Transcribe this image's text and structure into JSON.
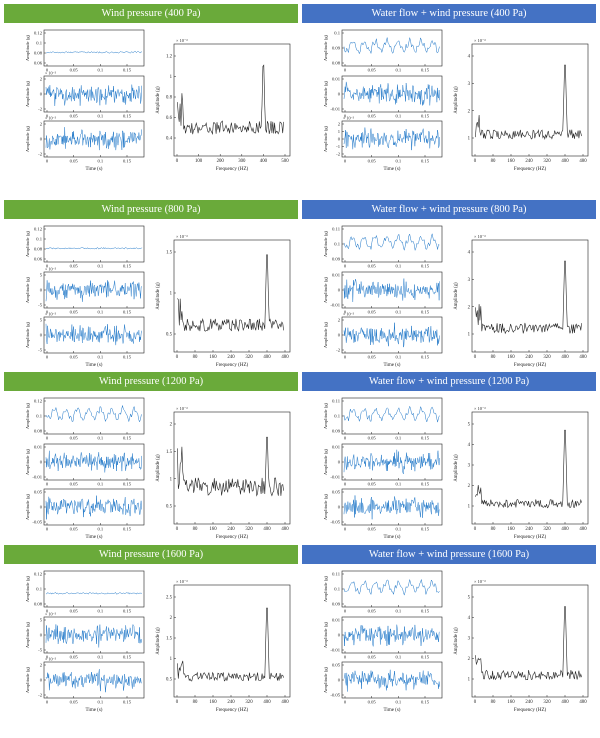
{
  "colors": {
    "green": "#6aaa3a",
    "blue": "#4472c4",
    "signal": "#1f77c8",
    "spectrum": "#222222"
  },
  "labels": {
    "amplitude": "Amplitude (g)",
    "time": "Time (s)",
    "frequency": "Frequency (HZ)"
  },
  "panels": [
    {
      "title": "Wind pressure (400 Pa)",
      "color": "green",
      "ts": [
        {
          "ticks": [
            "0.12",
            "0.1",
            "0.08",
            "0.06"
          ],
          "exp": "",
          "level": "0.08",
          "kind": "flat"
        },
        {
          "ticks": [
            "2",
            "0",
            "-2"
          ],
          "exp": "× 10⁻³",
          "kind": "dense"
        },
        {
          "ticks": [
            "2",
            "0",
            "-2"
          ],
          "exp": "× 10⁻³",
          "kind": "dense"
        }
      ],
      "timeTicks": [
        "0",
        "0.05",
        "0.1",
        "0.15"
      ],
      "spectrum": {
        "exp": "× 10⁻³",
        "yticks": [
          "1.2",
          "1",
          "0.8",
          "0.6",
          "0.4"
        ],
        "xticks": [
          "0",
          "100",
          "200",
          "300",
          "400",
          "500"
        ],
        "peak_hz": 400,
        "peak": 1.22,
        "base": 0.3
      }
    },
    {
      "title": "Water flow + wind pressure (400 Pa)",
      "color": "blue",
      "ts": [
        {
          "ticks": [
            "0.1",
            "0.09",
            "0.08"
          ],
          "exp": "",
          "kind": "wavy"
        },
        {
          "ticks": [
            "0.01",
            "0",
            "-0.01"
          ],
          "exp": "",
          "kind": "dense"
        },
        {
          "ticks": [
            "2",
            "1",
            "0",
            "-1",
            "-2"
          ],
          "exp": "× 10⁻³",
          "kind": "dense"
        }
      ],
      "timeTicks": [
        "0",
        "0.05",
        "0.1",
        "0.15"
      ],
      "spectrum": {
        "exp": "× 10⁻³",
        "yticks": [
          "4",
          "3",
          "2",
          "1"
        ],
        "xticks": [
          "0",
          "80",
          "160",
          "240",
          "320",
          "400",
          "480"
        ],
        "peak_hz": 400,
        "peak": 4.1,
        "base": 0.7
      }
    },
    {
      "title": "Wind pressure (800 Pa)",
      "color": "green",
      "ts": [
        {
          "ticks": [
            "0.12",
            "0.1",
            "0.08",
            "0.06"
          ],
          "exp": "",
          "kind": "flat"
        },
        {
          "ticks": [
            "5",
            "0",
            "-5"
          ],
          "exp": "× 10⁻³",
          "kind": "dense"
        },
        {
          "ticks": [
            "5",
            "0",
            "-5"
          ],
          "exp": "× 10⁻³",
          "kind": "dense"
        }
      ],
      "timeTicks": [
        "0",
        "0.05",
        "0.1",
        "0.15"
      ],
      "spectrum": {
        "exp": "× 10⁻³",
        "yticks": [
          "1.5",
          "1",
          "0.5"
        ],
        "xticks": [
          "0",
          "80",
          "160",
          "240",
          "320",
          "400",
          "480"
        ],
        "peak_hz": 400,
        "peak": 1.65,
        "base": 0.35
      }
    },
    {
      "title": "Water flow + wind pressure (800 Pa)",
      "color": "blue",
      "ts": [
        {
          "ticks": [
            "0.11",
            "0.1",
            "0.09"
          ],
          "exp": "",
          "kind": "wavy"
        },
        {
          "ticks": [
            "0.01",
            "0",
            "-0.01"
          ],
          "exp": "",
          "kind": "dense"
        },
        {
          "ticks": [
            "2",
            "0",
            "-2"
          ],
          "exp": "× 10⁻³",
          "kind": "dense"
        }
      ],
      "timeTicks": [
        "0",
        "0.05",
        "0.1",
        "0.15"
      ],
      "spectrum": {
        "exp": "× 10⁻³",
        "yticks": [
          "4",
          "3",
          "2",
          "1"
        ],
        "xticks": [
          "0",
          "80",
          "160",
          "240",
          "320",
          "400",
          "480"
        ],
        "peak_hz": 400,
        "peak": 4.1,
        "base": 0.8
      }
    },
    {
      "title": "Wind pressure (1200 Pa)",
      "color": "green",
      "ts": [
        {
          "ticks": [
            "0.12",
            "0.1",
            "0.08"
          ],
          "exp": "",
          "kind": "wavy"
        },
        {
          "ticks": [
            "0.01",
            "0",
            "-0.01"
          ],
          "exp": "",
          "kind": "dense"
        },
        {
          "ticks": [
            "0.05",
            "0",
            "-0.05"
          ],
          "exp": "",
          "kind": "dense"
        }
      ],
      "timeTicks": [
        "0",
        "0.05",
        "0.1",
        "0.15"
      ],
      "spectrum": {
        "exp": "× 10⁻³",
        "yticks": [
          "2",
          "1.5",
          "1",
          "0.5"
        ],
        "xticks": [
          "0",
          "80",
          "160",
          "240",
          "320",
          "400",
          "480"
        ],
        "peak_hz": 400,
        "peak": 1.95,
        "base": 0.7
      }
    },
    {
      "title": "Water flow + wind pressure (1200 Pa)",
      "color": "blue",
      "ts": [
        {
          "ticks": [
            "0.11",
            "0.1",
            "0.09"
          ],
          "exp": "",
          "kind": "wavy"
        },
        {
          "ticks": [
            "0.01",
            "0",
            "-0.01"
          ],
          "exp": "",
          "kind": "dense"
        },
        {
          "ticks": [
            "0.05",
            "0",
            "-0.05"
          ],
          "exp": "",
          "kind": "dense"
        }
      ],
      "timeTicks": [
        "0",
        "0.05",
        "0.1",
        "0.15"
      ],
      "spectrum": {
        "exp": "× 10⁻³",
        "yticks": [
          "5",
          "4",
          "3",
          "2",
          "1"
        ],
        "xticks": [
          "0",
          "80",
          "160",
          "240",
          "320",
          "400",
          "480"
        ],
        "peak_hz": 400,
        "peak": 5.3,
        "base": 0.8
      }
    },
    {
      "title": "Wind pressure (1600 Pa)",
      "color": "green",
      "ts": [
        {
          "ticks": [
            "0.12",
            "0.1",
            "0.08"
          ],
          "exp": "",
          "kind": "flat"
        },
        {
          "ticks": [
            "5",
            "0",
            "-5"
          ],
          "exp": "× 10⁻³",
          "kind": "dense"
        },
        {
          "ticks": [
            "2",
            "0",
            "-2"
          ],
          "exp": "× 10⁻³",
          "kind": "dense"
        }
      ],
      "timeTicks": [
        "0",
        "0.05",
        "0.1",
        "0.15"
      ],
      "spectrum": {
        "exp": "× 10⁻³",
        "yticks": [
          "2.5",
          "2",
          "1.5",
          "1",
          "0.5"
        ],
        "xticks": [
          "0",
          "80",
          "160",
          "240",
          "320",
          "400",
          "480"
        ],
        "peak_hz": 400,
        "peak": 2.5,
        "base": 0.4
      }
    },
    {
      "title": "Water flow + wind pressure (1600 Pa)",
      "color": "blue",
      "ts": [
        {
          "ticks": [
            "0.11",
            "0.1",
            "0.09"
          ],
          "exp": "",
          "kind": "wavy"
        },
        {
          "ticks": [
            "0.01",
            "0",
            "-0.01"
          ],
          "exp": "",
          "kind": "dense"
        },
        {
          "ticks": [
            "0.05",
            "0",
            "-0.05"
          ],
          "exp": "",
          "kind": "dense"
        }
      ],
      "timeTicks": [
        "0",
        "0.05",
        "0.1",
        "0.15"
      ],
      "spectrum": {
        "exp": "× 10⁻³",
        "yticks": [
          "5",
          "4",
          "3",
          "2",
          "1"
        ],
        "xticks": [
          "0",
          "80",
          "160",
          "240",
          "320",
          "400",
          "480"
        ],
        "peak_hz": 400,
        "peak": 5.1,
        "base": 0.9
      }
    }
  ],
  "chart_data": [
    {
      "type": "line",
      "title": "Wind pressure (400 Pa)",
      "xlabel": "Frequency (HZ)",
      "ylabel": "Amplitude (g)",
      "xlim": [
        0,
        500
      ],
      "x": [
        20,
        100,
        200,
        300,
        400,
        500
      ],
      "y": [
        0.5,
        0.35,
        0.3,
        0.35,
        1.22,
        0.25
      ]
    },
    {
      "type": "line",
      "title": "Water flow + wind pressure (400 Pa)",
      "xlabel": "Frequency (HZ)",
      "ylabel": "Amplitude (g)",
      "xlim": [
        0,
        480
      ],
      "x": [
        10,
        80,
        160,
        240,
        320,
        400,
        480
      ],
      "y": [
        1.3,
        0.7,
        0.6,
        0.5,
        0.8,
        4.1,
        0.5
      ]
    },
    {
      "type": "line",
      "title": "Wind pressure (800 Pa)",
      "xlabel": "Frequency (HZ)",
      "ylabel": "Amplitude (g)",
      "xlim": [
        0,
        480
      ],
      "x": [
        10,
        80,
        160,
        240,
        320,
        400,
        480
      ],
      "y": [
        0.65,
        0.4,
        0.35,
        0.38,
        0.35,
        1.65,
        0.3
      ]
    },
    {
      "type": "line",
      "title": "Water flow + wind pressure (800 Pa)",
      "xlabel": "Frequency (HZ)",
      "ylabel": "Amplitude (g)",
      "xlim": [
        0,
        480
      ],
      "x": [
        10,
        80,
        160,
        240,
        320,
        400,
        480
      ],
      "y": [
        1.5,
        0.8,
        0.7,
        0.8,
        1.0,
        4.1,
        0.6
      ]
    },
    {
      "type": "line",
      "title": "Wind pressure (1200 Pa)",
      "xlabel": "Frequency (HZ)",
      "ylabel": "Amplitude (g)",
      "xlim": [
        0,
        480
      ],
      "x": [
        10,
        80,
        160,
        240,
        320,
        400,
        480
      ],
      "y": [
        1.4,
        0.8,
        0.8,
        0.9,
        1.0,
        1.95,
        0.6
      ]
    },
    {
      "type": "line",
      "title": "Water flow + wind pressure (1200 Pa)",
      "xlabel": "Frequency (HZ)",
      "ylabel": "Amplitude (g)",
      "xlim": [
        0,
        480
      ],
      "x": [
        10,
        80,
        160,
        240,
        320,
        400,
        480
      ],
      "y": [
        1.6,
        0.8,
        0.6,
        0.7,
        0.9,
        5.3,
        0.7
      ]
    },
    {
      "type": "line",
      "title": "Wind pressure (1600 Pa)",
      "xlabel": "Frequency (HZ)",
      "ylabel": "Amplitude (g)",
      "xlim": [
        0,
        480
      ],
      "x": [
        10,
        80,
        160,
        240,
        320,
        400,
        480
      ],
      "y": [
        0.9,
        0.5,
        0.45,
        0.45,
        0.4,
        2.5,
        0.4
      ]
    },
    {
      "type": "line",
      "title": "Water flow + wind pressure (1600 Pa)",
      "xlabel": "Frequency (HZ)",
      "ylabel": "Amplitude (g)",
      "xlim": [
        0,
        480
      ],
      "x": [
        10,
        80,
        160,
        240,
        320,
        400,
        480
      ],
      "y": [
        1.8,
        0.9,
        0.8,
        0.8,
        1.0,
        5.1,
        0.7
      ]
    }
  ]
}
